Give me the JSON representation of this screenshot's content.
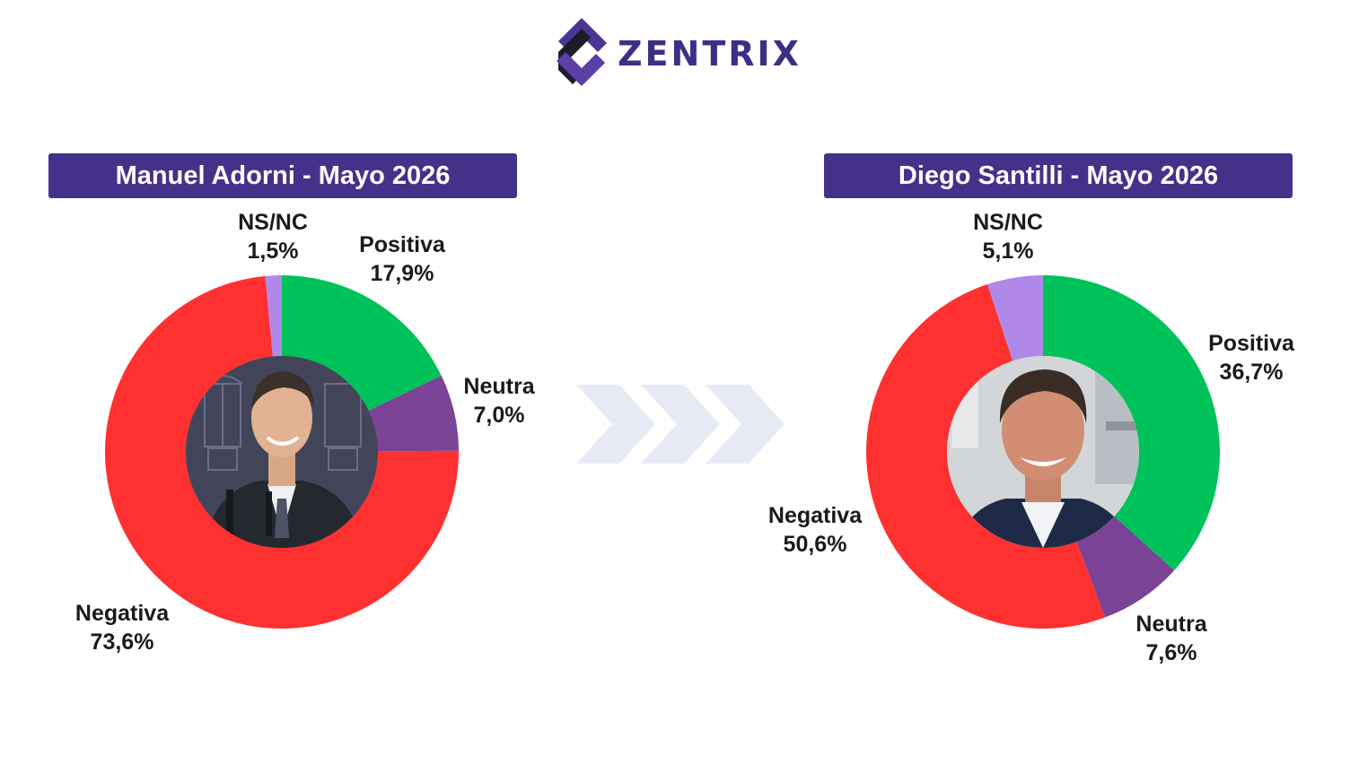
{
  "brand": {
    "name": "ZENTRIX",
    "color": "#3d2f86"
  },
  "colors": {
    "Positiva": "#00c25a",
    "Neutra": "#7a4396",
    "Negativa": "#ff3030",
    "NS/NC": "#b088e8",
    "title_bg": "#45308a",
    "arrows": "#e8ebf6"
  },
  "chart_data": [
    {
      "type": "pie",
      "variant": "donut",
      "title": "Manuel Adorni - Mayo 2026",
      "labels": [
        "Positiva",
        "Neutra",
        "Negativa",
        "NS/NC"
      ],
      "values": [
        17.9,
        7.0,
        73.6,
        1.5
      ],
      "value_labels": [
        "17,9%",
        "7,0%",
        "73,6%",
        "1,5%"
      ],
      "center_image": "portrait-photo"
    },
    {
      "type": "pie",
      "variant": "donut",
      "title": "Diego Santilli - Mayo 2026",
      "labels": [
        "Positiva",
        "Neutra",
        "Negativa",
        "NS/NC"
      ],
      "values": [
        36.7,
        7.6,
        50.6,
        5.1
      ],
      "value_labels": [
        "36,7%",
        "7,6%",
        "50,6%",
        "5,1%"
      ],
      "center_image": "portrait-photo"
    }
  ]
}
